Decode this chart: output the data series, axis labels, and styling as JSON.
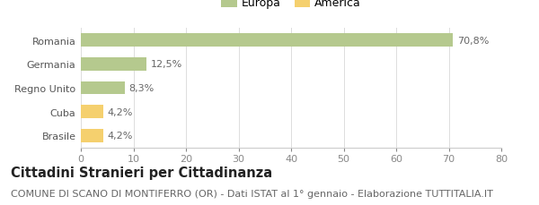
{
  "categories": [
    "Brasile",
    "Cuba",
    "Regno Unito",
    "Germania",
    "Romania"
  ],
  "values": [
    4.2,
    4.2,
    8.3,
    12.5,
    70.8
  ],
  "labels": [
    "4,2%",
    "4,2%",
    "8,3%",
    "12,5%",
    "70,8%"
  ],
  "colors": [
    "#f5d06e",
    "#f5d06e",
    "#b5c98e",
    "#b5c98e",
    "#b5c98e"
  ],
  "legend": [
    {
      "label": "Europa",
      "color": "#b5c98e"
    },
    {
      "label": "America",
      "color": "#f5d06e"
    }
  ],
  "xlim": [
    0,
    80
  ],
  "xticks": [
    0,
    10,
    20,
    30,
    40,
    50,
    60,
    70,
    80
  ],
  "title": "Cittadini Stranieri per Cittadinanza",
  "subtitle": "COMUNE DI SCANO DI MONTIFERRO (OR) - Dati ISTAT al 1° gennaio - Elaborazione TUTTITALIA.IT",
  "bg_color": "#ffffff",
  "bar_height": 0.55,
  "title_fontsize": 10.5,
  "subtitle_fontsize": 8,
  "label_fontsize": 8,
  "tick_fontsize": 8,
  "legend_fontsize": 9
}
